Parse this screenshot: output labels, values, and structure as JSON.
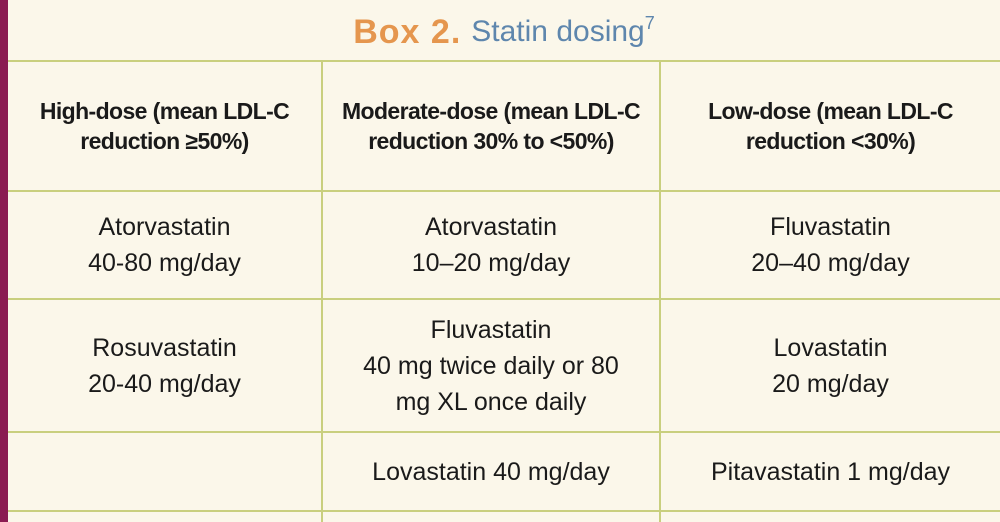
{
  "title": {
    "box_label": "Box 2.",
    "subtitle": "Statin dosing",
    "superscript": "7"
  },
  "headers": [
    "High-dose (mean LDL-C reduction ≥50%)",
    "Moderate-dose (mean LDL-C reduction 30% to <50%)",
    "Low-dose (mean LDL-C reduction <30%)"
  ],
  "rows": [
    {
      "high": [
        "Atorvastatin",
        "40-80 mg/day"
      ],
      "moderate": [
        "Atorvastatin",
        "10–20 mg/day"
      ],
      "low": [
        "Fluvastatin",
        "20–40 mg/day"
      ]
    },
    {
      "high": [
        "Rosuvastatin",
        "20-40 mg/day"
      ],
      "moderate": [
        "Fluvastatin",
        "40 mg twice daily or 80",
        "mg XL once daily"
      ],
      "low": [
        "Lovastatin",
        "20 mg/day"
      ]
    },
    {
      "high": [
        ""
      ],
      "moderate": [
        "Lovastatin 40 mg/day"
      ],
      "low": [
        "Pitavastatin 1 mg/day"
      ]
    }
  ],
  "colors": {
    "accent_bar": "#8b1c52",
    "box_label": "#e5964e",
    "subtitle": "#5e86ad",
    "grid": "#c9cf7e",
    "background": "#fbf7ea"
  }
}
